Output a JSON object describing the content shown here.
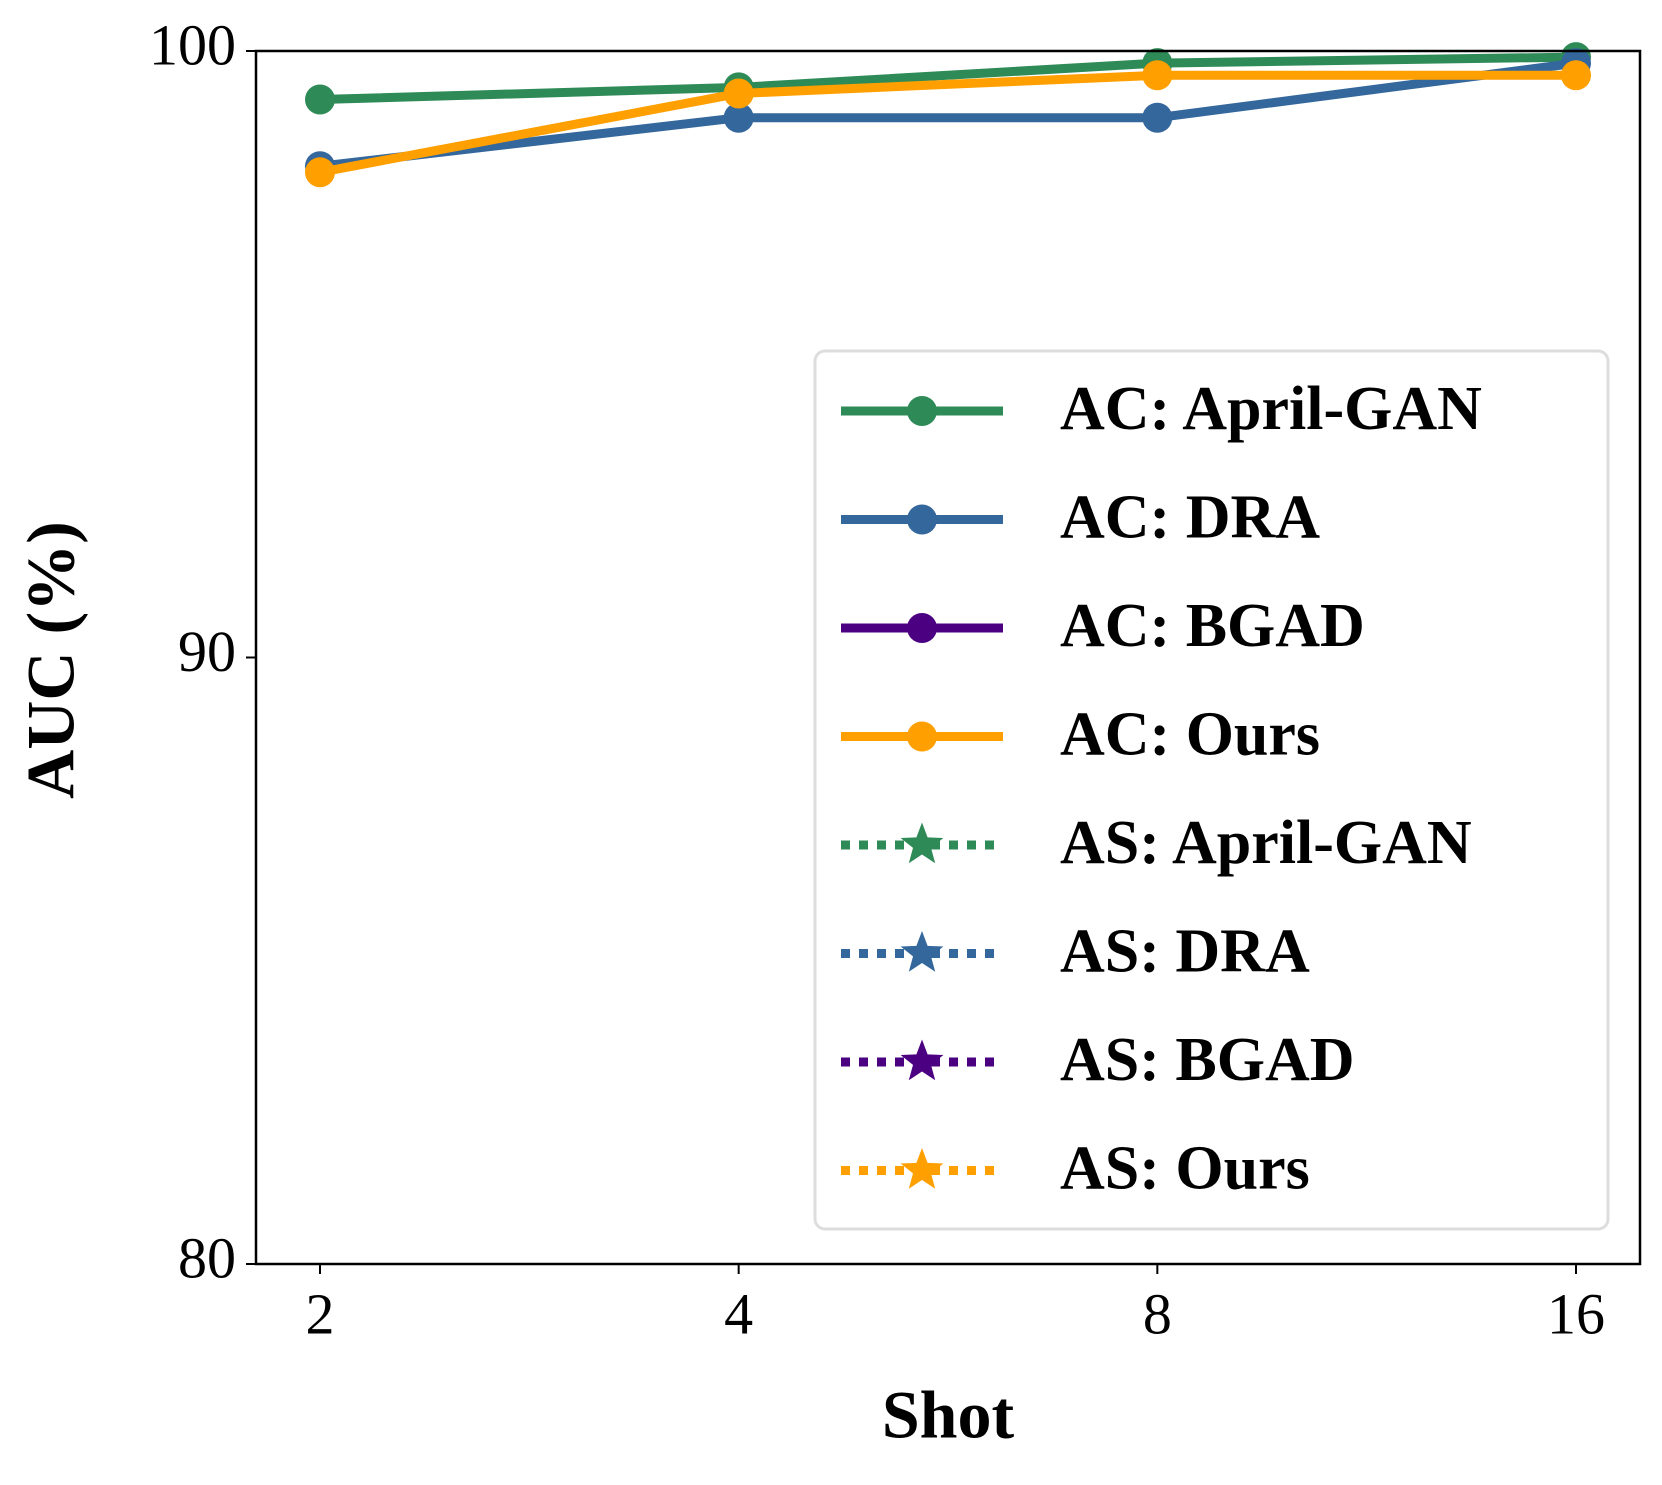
{
  "chart_data": {
    "type": "line",
    "xlabel": "Shot",
    "ylabel": "AUC (%)",
    "categories": [
      "2",
      "4",
      "8",
      "16"
    ],
    "ylim": [
      80,
      100
    ],
    "yticks": [
      80,
      90,
      100
    ],
    "legend": "lower right",
    "series": [
      {
        "name": "AC: April-GAN",
        "color": "#2e8b57",
        "linestyle": "solid",
        "marker": "circle",
        "values": [
          99.2,
          99.4,
          99.8,
          99.9
        ]
      },
      {
        "name": "AC: DRA",
        "color": "#34679c",
        "linestyle": "solid",
        "marker": "circle",
        "values": [
          98.1,
          98.9,
          98.9,
          99.8
        ]
      },
      {
        "name": "AC: BGAD",
        "color": "#4b0082",
        "linestyle": "solid",
        "marker": "circle",
        "values": [
          null,
          null,
          null,
          null
        ]
      },
      {
        "name": "AC: Ours",
        "color": "#ff9f00",
        "linestyle": "solid",
        "marker": "circle",
        "values": [
          98.0,
          99.3,
          99.6,
          99.6
        ]
      },
      {
        "name": "AS: April-GAN",
        "color": "#2e8b57",
        "linestyle": "dotted",
        "marker": "star",
        "values": [
          null,
          null,
          null,
          null
        ]
      },
      {
        "name": "AS: DRA",
        "color": "#34679c",
        "linestyle": "dotted",
        "marker": "star",
        "values": [
          null,
          null,
          null,
          null
        ]
      },
      {
        "name": "AS: BGAD",
        "color": "#4b0082",
        "linestyle": "dotted",
        "marker": "star",
        "values": [
          null,
          null,
          null,
          null
        ]
      },
      {
        "name": "AS: Ours",
        "color": "#ff9f00",
        "linestyle": "dotted",
        "marker": "star",
        "values": [
          null,
          null,
          null,
          null
        ]
      }
    ]
  }
}
